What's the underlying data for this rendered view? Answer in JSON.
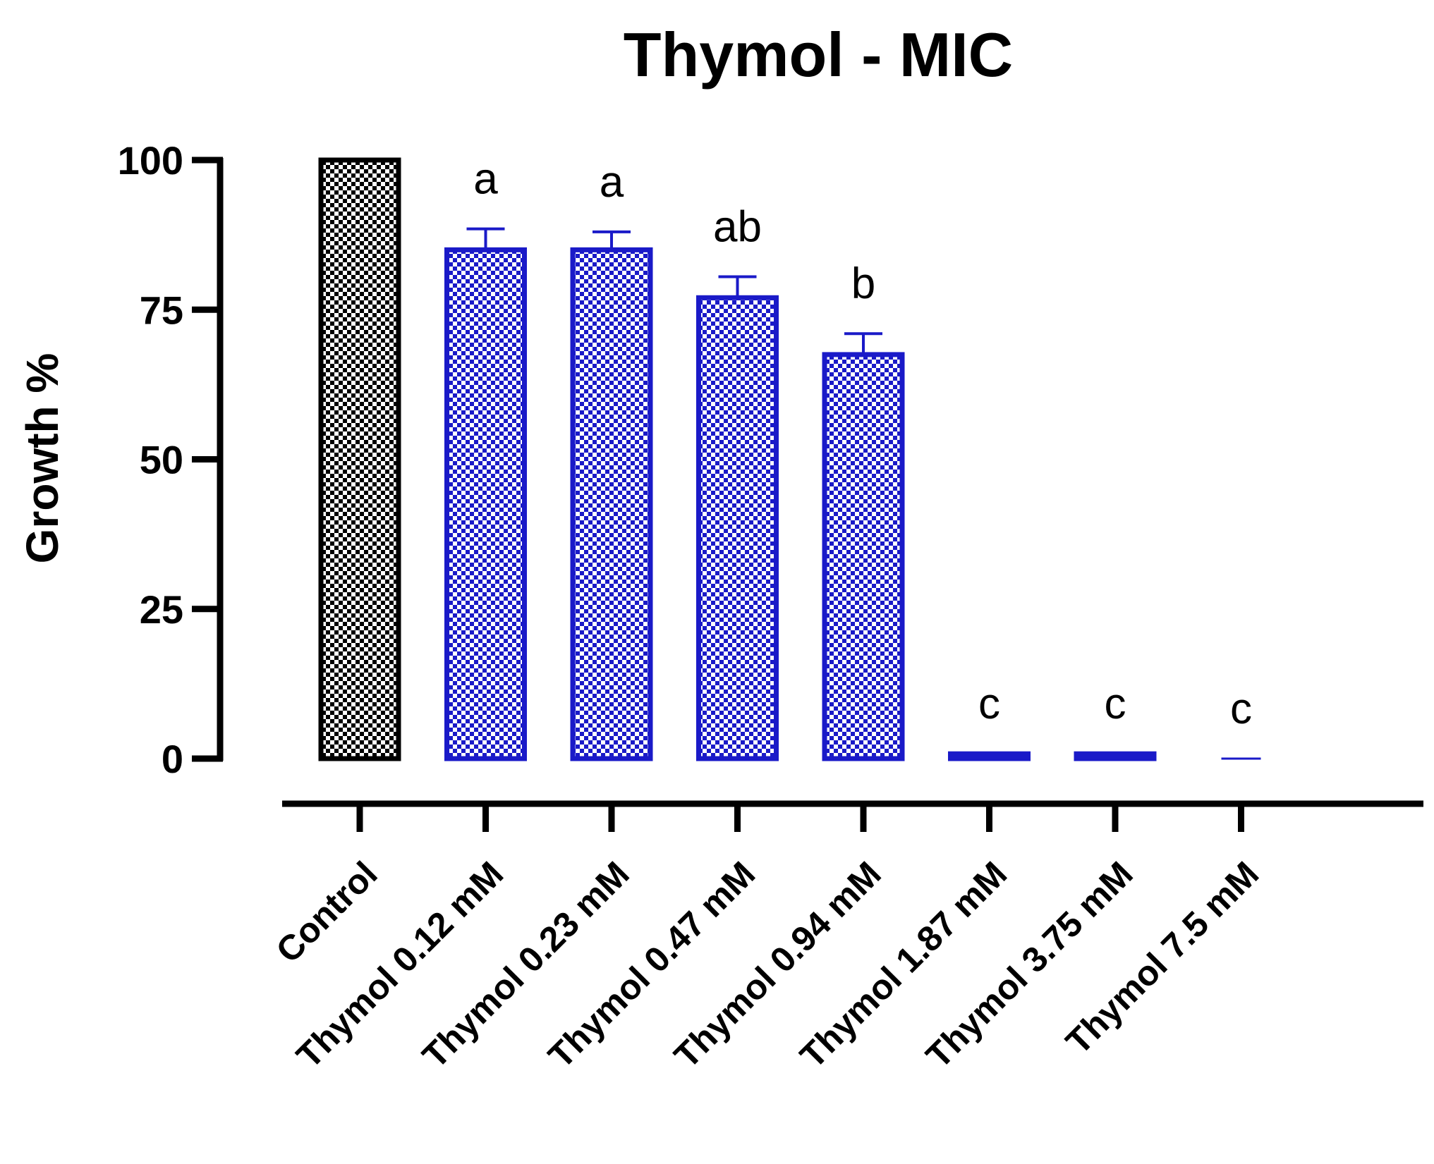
{
  "chart_data": {
    "type": "bar",
    "title": "Thymol - MIC",
    "xlabel": "",
    "ylabel": "Growth %",
    "ylim": [
      0,
      100
    ],
    "yticks": [
      0,
      25,
      50,
      75,
      100
    ],
    "categories": [
      "Control",
      "Thymol 0.12 mM",
      "Thymol 0.23 mM",
      "Thymol 0.47 mM",
      "Thymol 0.94 mM",
      "Thymol 1.87 mM",
      "Thymol 3.75 mM",
      "Thymol 7.5 mM"
    ],
    "values": [
      100,
      85,
      85,
      77,
      67.5,
      0.8,
      0.8,
      0
    ],
    "errors": [
      0,
      3.5,
      3,
      3.5,
      3.5,
      0,
      0,
      0
    ],
    "significance_letters": [
      "",
      "a",
      "a",
      "ab",
      "b",
      "c",
      "c",
      "c"
    ],
    "colors": {
      "control": "#000000",
      "treatment": "#1a1ac8",
      "axis": "#000000"
    },
    "grid": false,
    "legend": "none"
  }
}
